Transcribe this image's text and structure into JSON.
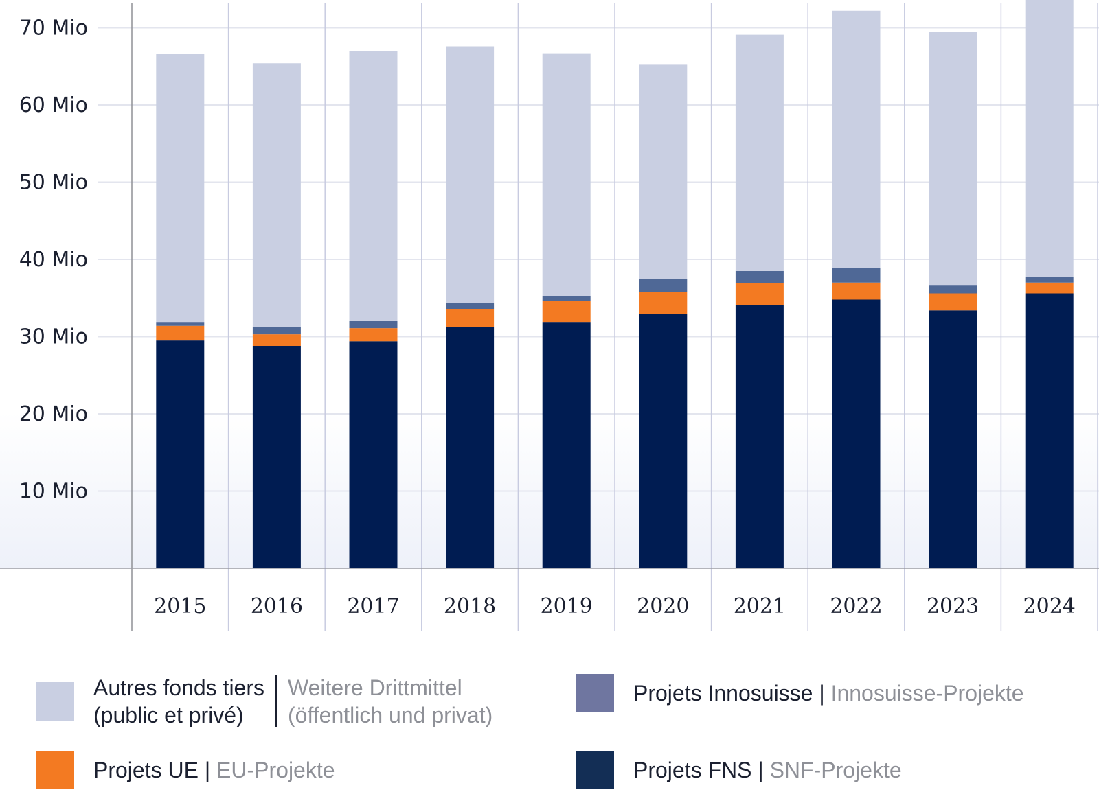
{
  "chart_data": {
    "type": "bar",
    "stacked": true,
    "title": "",
    "xlabel": "",
    "ylabel": "",
    "ylim": [
      0,
      73.6
    ],
    "y_unit": "Mio",
    "yticks": [
      {
        "value": 10,
        "label": "10 Mio"
      },
      {
        "value": 20,
        "label": "20 Mio"
      },
      {
        "value": 30,
        "label": "30 Mio"
      },
      {
        "value": 40,
        "label": "40 Mio"
      },
      {
        "value": 50,
        "label": "50 Mio"
      },
      {
        "value": 60,
        "label": "60 Mio"
      },
      {
        "value": 70,
        "label": "70 Mio"
      }
    ],
    "grid": true,
    "categories": [
      "2015",
      "2016",
      "2017",
      "2018",
      "2019",
      "2020",
      "2021",
      "2022",
      "2023",
      "2024"
    ],
    "series": [
      {
        "key": "fns",
        "name": "Projets FNS | SNF-Projekte",
        "color": "#001c52",
        "values": [
          29.5,
          28.8,
          29.4,
          31.2,
          31.9,
          32.9,
          34.1,
          34.8,
          33.4,
          35.6
        ]
      },
      {
        "key": "ue",
        "name": "Projets UE | EU-Projekte",
        "color": "#f37a22",
        "values": [
          1.9,
          1.5,
          1.7,
          2.4,
          2.7,
          2.9,
          2.8,
          2.2,
          2.2,
          1.4
        ]
      },
      {
        "key": "innosuisse",
        "name": "Projets Innosuisse | Innosuisse-Projekte",
        "color": "#4f6896",
        "values": [
          0.5,
          0.9,
          1.0,
          0.8,
          0.6,
          1.7,
          1.6,
          1.9,
          1.1,
          0.7
        ]
      },
      {
        "key": "autres",
        "name": "Autres fonds tiers (public et privé) | Weitere Drittmittel (öffentlich und privat)",
        "color": "#c9cfe2",
        "values": [
          34.7,
          34.2,
          34.9,
          33.2,
          31.5,
          27.8,
          30.6,
          33.3,
          32.8,
          37.0
        ]
      }
    ],
    "legend_position": "bottom"
  },
  "legend": {
    "autres": {
      "fr_line1": "Autres fonds tiers",
      "fr_line2": "(public et privé)",
      "de_line1": "Weitere Drittmittel",
      "de_line2": "(öffentlich und privat)",
      "swatch_color": "#c9cfe2"
    },
    "innosuisse": {
      "fr": "Projets Innosuisse",
      "sep": " | ",
      "de": "Innosuisse-Projekte",
      "swatch_color": "#6f76a0"
    },
    "ue": {
      "fr": "Projets UE",
      "sep": " | ",
      "de": "EU-Projekte",
      "swatch_color": "#f37a22"
    },
    "fns": {
      "fr": "Projets FNS",
      "sep": " | ",
      "de": "SNF-Projekte",
      "swatch_color": "#132e55"
    }
  }
}
